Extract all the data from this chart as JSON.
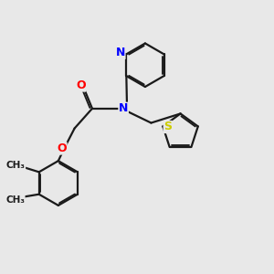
{
  "background_color": "#e8e8e8",
  "bond_color": "#1a1a1a",
  "N_color": "#0000ff",
  "O_color": "#ff0000",
  "S_color": "#cccc00",
  "line_width": 1.6,
  "dbo": 0.055,
  "figsize": [
    3.0,
    3.0
  ],
  "dpi": 100,
  "xlim": [
    0,
    10
  ],
  "ylim": [
    0,
    10
  ]
}
